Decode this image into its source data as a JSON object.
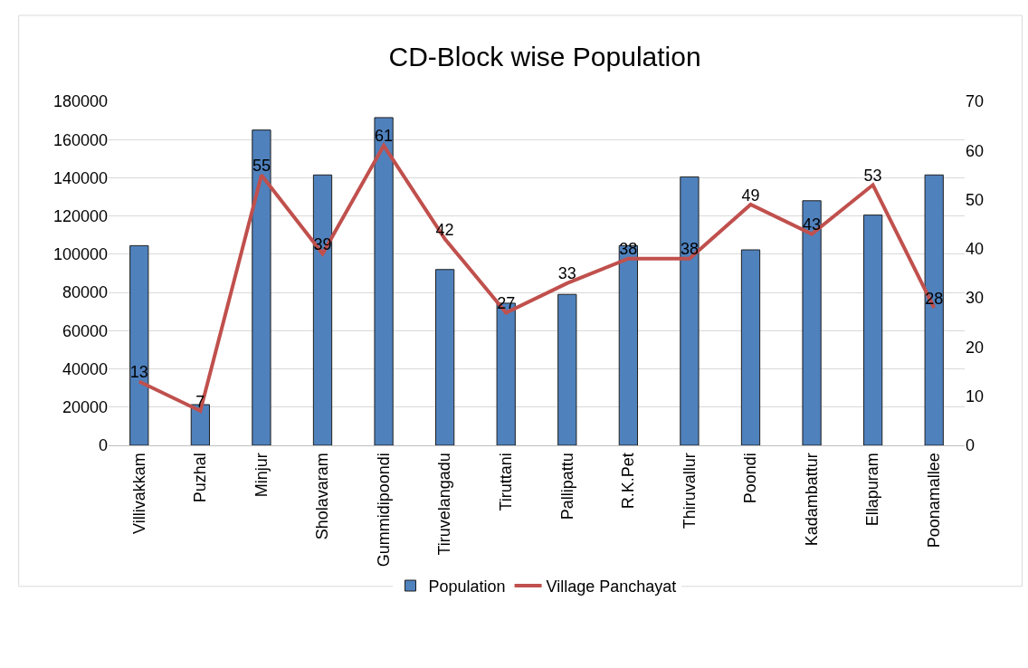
{
  "chart_data": {
    "type": "bar",
    "title": "CD-Block wise Population",
    "categories": [
      "Villivakkam",
      "Puzhal",
      "Minjur",
      "Sholavaram",
      "Gummidipoondi",
      "Tiruvelangadu",
      "Tiruttani",
      "Pallipattu",
      "R.K.Pet",
      "Thiruvallur",
      "Poondi",
      "Kadambattur",
      "Ellapuram",
      "Poonamallee"
    ],
    "series": [
      {
        "name": "Population",
        "color": "#4f81bd",
        "values": [
          104500,
          21300,
          165000,
          141500,
          171500,
          92000,
          74400,
          79000,
          104500,
          140500,
          102300,
          128000,
          120500,
          141500
        ]
      },
      {
        "name": "Village Panchayat",
        "type": "line",
        "axis": "y2",
        "color": "#c0504d",
        "values": [
          13,
          7,
          55,
          39,
          61,
          42,
          27,
          33,
          38,
          38,
          49,
          43,
          53,
          28
        ],
        "value_labels": [
          "13",
          "7",
          "55",
          "39",
          "61",
          "42",
          "27",
          "33",
          "38",
          "38",
          "49",
          "43",
          "53",
          "28"
        ]
      }
    ],
    "ylim": [
      0,
      180000
    ],
    "yticks": [
      0,
      20000,
      40000,
      60000,
      80000,
      100000,
      120000,
      140000,
      160000,
      180000
    ],
    "y2lim": [
      0,
      70
    ],
    "y2ticks": [
      0,
      10,
      20,
      30,
      40,
      50,
      60,
      70
    ],
    "grid": "y",
    "legend": "bottom",
    "marker": "none",
    "line_style": "solid"
  }
}
